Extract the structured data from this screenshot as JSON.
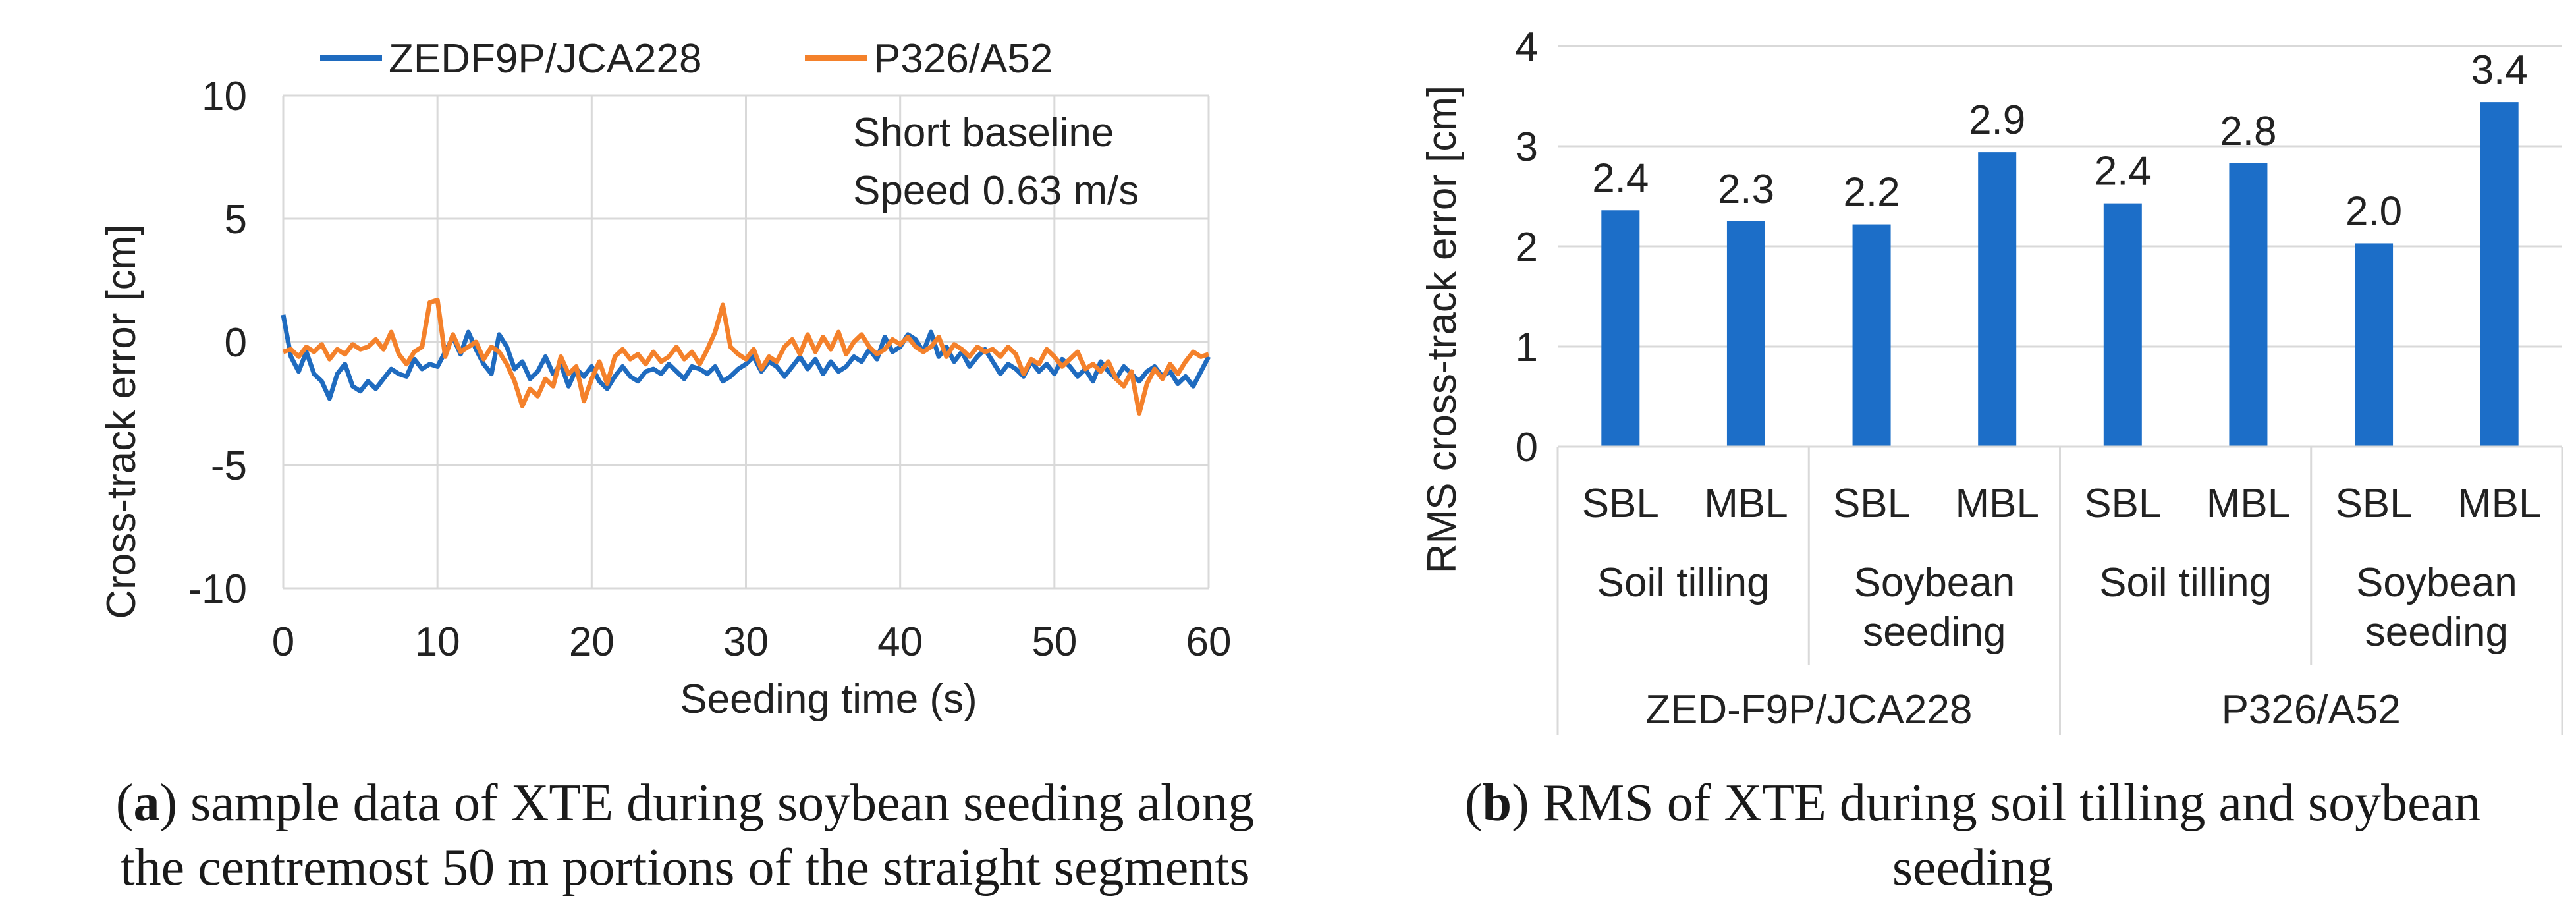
{
  "colors": {
    "blue": "#1f6bbf",
    "orange": "#f4812b",
    "bar": "#1c6ec8",
    "grid": "#d9d9d9",
    "text": "#222222"
  },
  "chart_data": [
    {
      "type": "line",
      "panel": "a",
      "xlabel": "Seeding time (s)",
      "ylabel": "Cross-track error [cm]",
      "xlim": [
        0,
        60
      ],
      "ylim": [
        -10,
        10
      ],
      "xticks": [
        "0",
        "10",
        "20",
        "30",
        "40",
        "50",
        "60"
      ],
      "yticks": [
        "10",
        "5",
        "0",
        "-5",
        "-10"
      ],
      "annotation": [
        "Short baseline",
        "Speed 0.63 m/s"
      ],
      "legend": [
        "ZEDF9P/JCA228",
        "P326/A52"
      ],
      "series": [
        {
          "name": "ZEDF9P/JCA228",
          "x": [
            0,
            0.5,
            1,
            1.5,
            2,
            2.5,
            3,
            3.5,
            4,
            4.5,
            5,
            5.5,
            6,
            6.5,
            7,
            7.5,
            8,
            8.5,
            9,
            9.5,
            10,
            10.5,
            11,
            11.5,
            12,
            12.5,
            13,
            13.5,
            14,
            14.5,
            15,
            15.5,
            16,
            16.5,
            17,
            17.5,
            18,
            18.5,
            19,
            19.5,
            20,
            20.5,
            21,
            21.5,
            22,
            22.5,
            23,
            23.5,
            24,
            24.5,
            25,
            25.5,
            26,
            26.5,
            27,
            27.5,
            28,
            28.5,
            29,
            29.5,
            30,
            30.5,
            31,
            31.5,
            32,
            32.5,
            33,
            33.5,
            34,
            34.5,
            35,
            35.5,
            36,
            36.5,
            37,
            37.5,
            38,
            38.5,
            39,
            39.5,
            40,
            40.5,
            41,
            41.5,
            42,
            42.5,
            43,
            43.5,
            44,
            44.5,
            45,
            45.5,
            46,
            46.5,
            47,
            47.5,
            48,
            48.5,
            49,
            49.5,
            50,
            50.5,
            51,
            51.5,
            52,
            52.5,
            53,
            53.5,
            54,
            54.5,
            55,
            55.5,
            56,
            56.5,
            57,
            57.5,
            58,
            58.5,
            59,
            59.5,
            60
          ],
          "y": [
            1.1,
            -0.6,
            -1.2,
            -0.4,
            -1.3,
            -1.6,
            -2.3,
            -1.3,
            -0.9,
            -1.8,
            -2.0,
            -1.6,
            -1.9,
            -1.5,
            -1.1,
            -1.3,
            -1.4,
            -0.7,
            -1.1,
            -0.9,
            -1.0,
            -0.4,
            0.2,
            -0.5,
            0.4,
            -0.3,
            -0.9,
            -1.3,
            0.3,
            -0.2,
            -1.1,
            -0.8,
            -1.5,
            -1.2,
            -0.6,
            -1.3,
            -0.9,
            -1.8,
            -1.1,
            -1.4,
            -1.0,
            -1.6,
            -1.9,
            -1.4,
            -1.0,
            -1.4,
            -1.6,
            -1.2,
            -1.1,
            -1.3,
            -0.9,
            -1.2,
            -1.5,
            -1.0,
            -1.1,
            -1.3,
            -1.0,
            -1.6,
            -1.4,
            -1.1,
            -0.9,
            -0.6,
            -1.2,
            -0.8,
            -1.0,
            -1.4,
            -1.0,
            -0.6,
            -1.1,
            -0.7,
            -1.3,
            -0.8,
            -1.2,
            -1.0,
            -0.6,
            -0.8,
            -0.3,
            -0.7,
            0.2,
            -0.4,
            -0.2,
            0.3,
            0.1,
            -0.4,
            0.4,
            -0.6,
            -0.2,
            -0.8,
            -0.4,
            -1.0,
            -0.6,
            -0.3,
            -0.8,
            -1.3,
            -0.9,
            -1.1,
            -1.4,
            -0.8,
            -1.2,
            -0.9,
            -1.3,
            -0.7,
            -1.0,
            -1.4,
            -1.1,
            -1.6,
            -0.8,
            -1.2,
            -1.5,
            -1.0,
            -1.3,
            -1.6,
            -1.2,
            -1.0,
            -1.4,
            -1.2,
            -1.7,
            -1.4,
            -1.8,
            -1.2,
            -0.6
          ]
        },
        {
          "name": "P326/A52",
          "x": [
            0,
            0.5,
            1,
            1.5,
            2,
            2.5,
            3,
            3.5,
            4,
            4.5,
            5,
            5.5,
            6,
            6.5,
            7,
            7.5,
            8,
            8.5,
            9,
            9.5,
            10,
            10.5,
            11,
            11.5,
            12,
            12.5,
            13,
            13.5,
            14,
            14.5,
            15,
            15.5,
            16,
            16.5,
            17,
            17.5,
            18,
            18.5,
            19,
            19.5,
            20,
            20.5,
            21,
            21.5,
            22,
            22.5,
            23,
            23.5,
            24,
            24.5,
            25,
            25.5,
            26,
            26.5,
            27,
            27.5,
            28,
            28.5,
            29,
            29.5,
            30,
            30.5,
            31,
            31.5,
            32,
            32.5,
            33,
            33.5,
            34,
            34.5,
            35,
            35.5,
            36,
            36.5,
            37,
            37.5,
            38,
            38.5,
            39,
            39.5,
            40,
            40.5,
            41,
            41.5,
            42,
            42.5,
            43,
            43.5,
            44,
            44.5,
            45,
            45.5,
            46,
            46.5,
            47,
            47.5,
            48,
            48.5,
            49,
            49.5,
            50,
            50.5,
            51,
            51.5,
            52,
            52.5,
            53,
            53.5,
            54,
            54.5,
            55,
            55.5,
            56,
            56.5,
            57,
            57.5,
            58,
            58.5,
            59,
            59.5,
            60
          ],
          "y": [
            -0.4,
            -0.3,
            -0.6,
            -0.2,
            -0.4,
            -0.1,
            -0.7,
            -0.3,
            -0.5,
            -0.1,
            -0.3,
            -0.2,
            0.1,
            -0.3,
            0.4,
            -0.5,
            -0.9,
            -0.4,
            -0.2,
            1.6,
            1.7,
            -0.6,
            0.3,
            -0.4,
            -0.2,
            0.0,
            -0.7,
            -0.2,
            -0.4,
            -0.9,
            -1.6,
            -2.6,
            -1.9,
            -2.2,
            -1.5,
            -1.8,
            -0.6,
            -1.3,
            -1.0,
            -2.4,
            -1.5,
            -0.8,
            -1.7,
            -0.6,
            -0.3,
            -0.7,
            -0.5,
            -0.9,
            -0.4,
            -0.8,
            -0.6,
            -0.2,
            -0.7,
            -0.4,
            -0.9,
            -0.3,
            0.4,
            1.5,
            -0.2,
            -0.5,
            -0.7,
            -0.3,
            -1.1,
            -0.6,
            -0.8,
            -0.2,
            0.1,
            -0.5,
            0.3,
            -0.4,
            0.2,
            -0.3,
            0.4,
            -0.5,
            0.0,
            0.3,
            -0.2,
            -0.5,
            -0.3,
            0.1,
            -0.1,
            0.2,
            -0.2,
            -0.4,
            -0.2,
            0.2,
            -0.6,
            -0.1,
            -0.3,
            -0.6,
            -0.2,
            -0.4,
            -0.3,
            -0.6,
            -0.2,
            -0.5,
            -1.3,
            -0.7,
            -0.9,
            -0.3,
            -0.6,
            -1.0,
            -0.7,
            -0.4,
            -1.1,
            -0.9,
            -1.2,
            -0.8,
            -1.5,
            -1.8,
            -1.2,
            -2.9,
            -1.7,
            -1.1,
            -1.5,
            -0.9,
            -1.3,
            -0.8,
            -0.4,
            -0.6,
            -0.5
          ]
        }
      ]
    },
    {
      "type": "bar",
      "panel": "b",
      "ylabel": "RMS cross-track error [cm]",
      "ylim": [
        0,
        4
      ],
      "yticks": [
        "4",
        "3",
        "2",
        "1",
        "0"
      ],
      "categories": [
        "SBL",
        "MBL",
        "SBL",
        "MBL",
        "SBL",
        "MBL",
        "SBL",
        "MBL"
      ],
      "values": [
        2.36,
        2.25,
        2.22,
        2.94,
        2.43,
        2.83,
        2.03,
        3.44
      ],
      "value_labels": [
        "2.4",
        "2.3",
        "2.2",
        "2.9",
        "2.4",
        "2.8",
        "2.0",
        "3.4"
      ],
      "level2": [
        {
          "label": [
            "Soil tilling"
          ]
        },
        {
          "label": [
            "Soybean",
            "seeding"
          ]
        },
        {
          "label": [
            "Soil tilling"
          ]
        },
        {
          "label": [
            "Soybean",
            "seeding"
          ]
        }
      ],
      "level3": [
        "ZED-F9P/JCA228",
        "P326/A52"
      ]
    }
  ],
  "captions": {
    "a": {
      "tag": "a",
      "line1": ") sample data of XTE during soybean seeding along",
      "line2": "the centremost 50 m portions of the straight segments"
    },
    "b": {
      "tag": "b",
      "line1": ") RMS of XTE during soil tilling and soybean",
      "line2": "seeding"
    }
  }
}
